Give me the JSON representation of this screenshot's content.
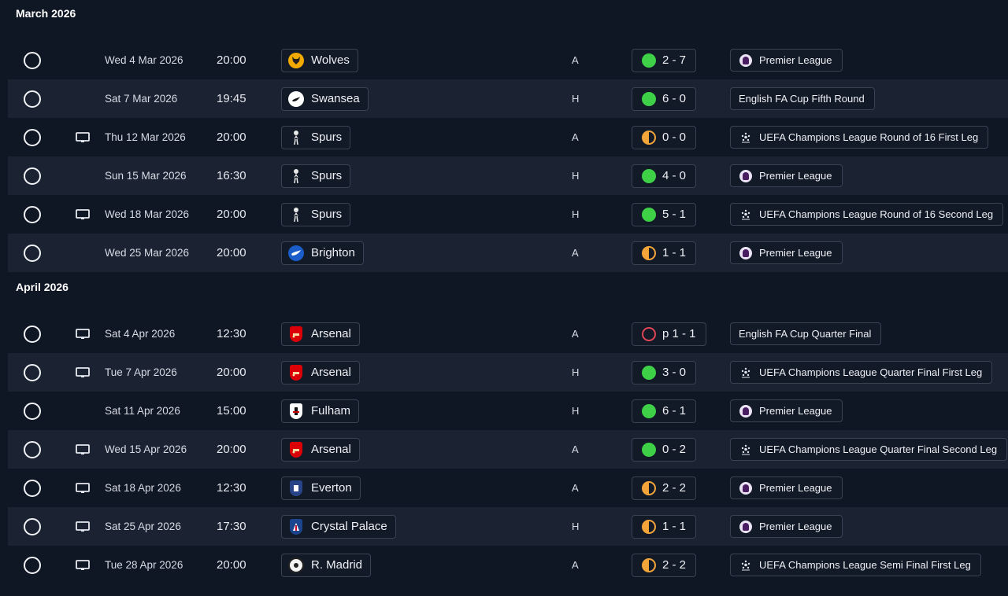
{
  "sections": [
    {
      "title": "March 2026",
      "fixtures": [
        {
          "tv": false,
          "date": "Wed 4 Mar 2026",
          "time": "20:00",
          "team": "Wolves",
          "badge": "wolves",
          "venue": "A",
          "result_type": "win",
          "score": "2 - 7",
          "competition": "Premier League",
          "comp_icon": "premier-league-icon"
        },
        {
          "tv": false,
          "date": "Sat 7 Mar 2026",
          "time": "19:45",
          "team": "Swansea",
          "badge": "swansea",
          "venue": "H",
          "result_type": "win",
          "score": "6 - 0",
          "competition": "English FA Cup Fifth Round",
          "comp_icon": ""
        },
        {
          "tv": true,
          "date": "Thu 12 Mar 2026",
          "time": "20:00",
          "team": "Spurs",
          "badge": "spurs",
          "venue": "A",
          "result_type": "draw",
          "score": "0 - 0",
          "competition": "UEFA Champions League Round of 16  First Leg",
          "comp_icon": "champions-league-icon"
        },
        {
          "tv": false,
          "date": "Sun 15 Mar 2026",
          "time": "16:30",
          "team": "Spurs",
          "badge": "spurs",
          "venue": "H",
          "result_type": "win",
          "score": "4 - 0",
          "competition": "Premier League",
          "comp_icon": "premier-league-icon"
        },
        {
          "tv": true,
          "date": "Wed 18 Mar 2026",
          "time": "20:00",
          "team": "Spurs",
          "badge": "spurs",
          "venue": "H",
          "result_type": "win",
          "score": "5 - 1",
          "competition": "UEFA Champions League Round of 16  Second Leg",
          "comp_icon": "champions-league-icon"
        },
        {
          "tv": false,
          "date": "Wed 25 Mar 2026",
          "time": "20:00",
          "team": "Brighton",
          "badge": "brighton",
          "venue": "A",
          "result_type": "draw",
          "score": "1 - 1",
          "competition": "Premier League",
          "comp_icon": "premier-league-icon"
        }
      ]
    },
    {
      "title": "April 2026",
      "fixtures": [
        {
          "tv": true,
          "date": "Sat 4 Apr 2026",
          "time": "12:30",
          "team": "Arsenal",
          "badge": "arsenal",
          "venue": "A",
          "result_type": "pen",
          "score": "p 1 - 1",
          "competition": "English FA Cup Quarter Final",
          "comp_icon": ""
        },
        {
          "tv": true,
          "date": "Tue 7 Apr 2026",
          "time": "20:00",
          "team": "Arsenal",
          "badge": "arsenal",
          "venue": "H",
          "result_type": "win",
          "score": "3 - 0",
          "competition": "UEFA Champions League Quarter Final First Leg",
          "comp_icon": "champions-league-icon"
        },
        {
          "tv": false,
          "date": "Sat 11 Apr 2026",
          "time": "15:00",
          "team": "Fulham",
          "badge": "fulham",
          "venue": "H",
          "result_type": "win",
          "score": "6 - 1",
          "competition": "Premier League",
          "comp_icon": "premier-league-icon"
        },
        {
          "tv": true,
          "date": "Wed 15 Apr 2026",
          "time": "20:00",
          "team": "Arsenal",
          "badge": "arsenal",
          "venue": "A",
          "result_type": "win",
          "score": "0 - 2",
          "competition": "UEFA Champions League Quarter Final Second Leg",
          "comp_icon": "champions-league-icon"
        },
        {
          "tv": true,
          "date": "Sat 18 Apr 2026",
          "time": "12:30",
          "team": "Everton",
          "badge": "everton",
          "venue": "A",
          "result_type": "draw",
          "score": "2 - 2",
          "competition": "Premier League",
          "comp_icon": "premier-league-icon"
        },
        {
          "tv": true,
          "date": "Sat 25 Apr 2026",
          "time": "17:30",
          "team": "Crystal Palace",
          "badge": "crystal-palace",
          "venue": "H",
          "result_type": "draw",
          "score": "1 - 1",
          "competition": "Premier League",
          "comp_icon": "premier-league-icon"
        },
        {
          "tv": true,
          "date": "Tue 28 Apr 2026",
          "time": "20:00",
          "team": "R. Madrid",
          "badge": "real-madrid",
          "venue": "A",
          "result_type": "draw",
          "score": "2 - 2",
          "competition": "UEFA Champions League Semi Final First Leg",
          "comp_icon": "champions-league-icon"
        }
      ]
    }
  ],
  "badge_colors": {
    "wolves": "#f2a900",
    "swansea": "#ffffff",
    "spurs": "#e8e8e8",
    "brighton": "#1a5dc9",
    "arsenal": "#db0007",
    "fulham": "#ffffff",
    "everton": "#274488",
    "crystal-palace": "#1b458f",
    "real-madrid": "#f3f3f3"
  },
  "result_colors": {
    "win": "#3ed047",
    "draw": "#f4a53a",
    "pen": "#e04555"
  }
}
